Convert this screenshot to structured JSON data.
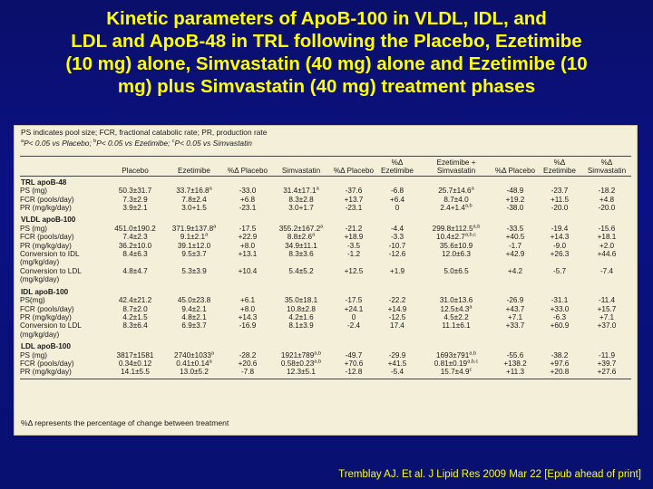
{
  "title_lines": [
    "Kinetic parameters of ApoB-100 in VLDL, IDL, and",
    "LDL and ApoB-48 in TRL following the Placebo, Ezetimibe",
    "(10 mg) alone, Simvastatin (40 mg) alone and Ezetimibe  (10",
    "mg) plus Simvastatin (40 mg) treatment phases"
  ],
  "notes": {
    "line1": "PS indicates pool size; FCR, fractional catabolic rate; PR, production rate",
    "line2_parts": [
      "a",
      "P< 0.05 vs Placebo; ",
      "b",
      "P< 0.05 vs Ezetimibe; ",
      "c",
      "P< 0.05 vs Simvastatin"
    ]
  },
  "headers": [
    "",
    "Placebo",
    "Ezetimibe",
    "%Δ Placebo",
    "Simvastatin",
    "%Δ Placebo",
    "%Δ Ezetimibe",
    "Ezetimibe + Simvastatin",
    "%Δ Placebo",
    "%Δ Ezetimibe",
    "%Δ Simvastatin"
  ],
  "sections": [
    {
      "name": "TRL apoB-48",
      "rows": [
        {
          "label": "PS (mg)",
          "cells": [
            "50.3±31.7",
            "33.7±16.8^a",
            "-33.0",
            "31.4±17.1^a",
            "-37.6",
            "-6.8",
            "25.7±14.6^a",
            "-48.9",
            "-23.7",
            "-18.2"
          ]
        },
        {
          "label": "FCR (pools/day)",
          "cells": [
            "7.3±2.9",
            "7.8±2.4",
            "+6.8",
            "8.3±2.8",
            "+13.7",
            "+6.4",
            "8.7±4.0",
            "+19.2",
            "+11.5",
            "+4.8"
          ]
        },
        {
          "label": "PR (mg/kg/day)",
          "cells": [
            "3.9±2.1",
            "3.0+1.5",
            "-23.1",
            "3.0+1.7",
            "-23.1",
            "0",
            "2.4+1.4^a,b",
            "-38.0",
            "-20.0",
            "-20.0"
          ]
        }
      ]
    },
    {
      "name": "VLDL apoB-100",
      "rows": [
        {
          "label": "PS (mg)",
          "cells": [
            "451.0±190.2",
            "371.9±137.8^a",
            "-17.5",
            "355.2±167.2^a",
            "-21.2",
            "-4.4",
            "299.8±112.5^a,b",
            "-33.5",
            "-19.4",
            "-15.6"
          ]
        },
        {
          "label": "FCR (pools/day)",
          "cells": [
            "7.4±2.3",
            "9.1±2.1^a",
            "+22.9",
            "8.8±2.6^a",
            "+18.9",
            "-3.3",
            "10.4±2.7^a,b,c",
            "+40.5",
            "+14.3",
            "+18.1"
          ]
        },
        {
          "label": "PR (mg/kg/day)",
          "cells": [
            "36.2±10.0",
            "39.1±12.0",
            "+8.0",
            "34.9±11.1",
            "-3.5",
            "-10.7",
            "35.6±10.9",
            "-1.7",
            "-9.0",
            "+2.0"
          ]
        },
        {
          "label": "Conversion to IDL (mg/kg/day)",
          "cells": [
            "8.4±6.3",
            "9.5±3.7",
            "+13.1",
            "8.3±3.6",
            "-1.2",
            "-12.6",
            "12.0±6.3",
            "+42.9",
            "+26.3",
            "+44.6"
          ]
        },
        {
          "label": "Conversion to LDL (mg/kg/day)",
          "cells": [
            "4.8±4.7",
            "5.3±3.9",
            "+10.4",
            "5.4±5.2",
            "+12.5",
            "+1.9",
            "5.0±6.5",
            "+4.2",
            "-5.7",
            "-7.4"
          ]
        }
      ]
    },
    {
      "name": "IDL apoB-100",
      "rows": [
        {
          "label": "PS(mg)",
          "cells": [
            "42.4±21.2",
            "45.0±23.8",
            "+6.1",
            "35.0±18.1",
            "-17.5",
            "-22.2",
            "31.0±13.6",
            "-26.9",
            "-31.1",
            "-11.4"
          ]
        },
        {
          "label": "FCR (pools/day)",
          "cells": [
            "8.7±2.0",
            "9.4±2.1",
            "+8.0",
            "10.8±2.8",
            "+24.1",
            "+14.9",
            "12.5±4.3^a",
            "+43.7",
            "+33.0",
            "+15.7"
          ]
        },
        {
          "label": "PR (mg/kg/day)",
          "cells": [
            "4.2±1.5",
            "4.8±2.1",
            "+14.3",
            "4.2±1.6",
            "0",
            "-12.5",
            "4.5±2.2",
            "+7.1",
            "-6.3",
            "+7.1"
          ]
        },
        {
          "label": "Conversion to LDL (mg/kg/day)",
          "cells": [
            "8.3±6.4",
            "6.9±3.7",
            "-16.9",
            "8.1±3.9",
            "-2.4",
            "17.4",
            "11.1±6.1",
            "+33.7",
            "+60.9",
            "+37.0"
          ]
        }
      ]
    },
    {
      "name": "LDL apoB-100",
      "rows": [
        {
          "label": "PS (mg)",
          "cells": [
            "3817±1581",
            "2740±1033^a",
            "-28.2",
            "1921±789^a,b",
            "-49.7",
            "-29.9",
            "1693±791^a,b",
            "-55.6",
            "-38.2",
            "-11.9"
          ]
        },
        {
          "label": "FCR (pools/day)",
          "cells": [
            "0.34±0.12",
            "0.41±0.14^a",
            "+20.6",
            "0.58±0.23^a,b",
            "+70.6",
            "+41.5",
            "0.81±0.19^a,b,c",
            "+138.2",
            "+97.6",
            "+39.7"
          ]
        },
        {
          "label": "PR (mg/kg/day)",
          "cells": [
            "14.1±5.5",
            "13.0±5.2",
            "-7.8",
            "12.3±5.1",
            "-12.8",
            "-5.4",
            "15.7±4.9^c",
            "+11.3",
            "+20.8",
            "+27.6"
          ]
        }
      ]
    }
  ],
  "footnote": "%Δ represents the percentage of change between treatment",
  "citation": "Tremblay AJ. Et al. J Lipid Res 2009 Mar 22 [Epub ahead of print]"
}
